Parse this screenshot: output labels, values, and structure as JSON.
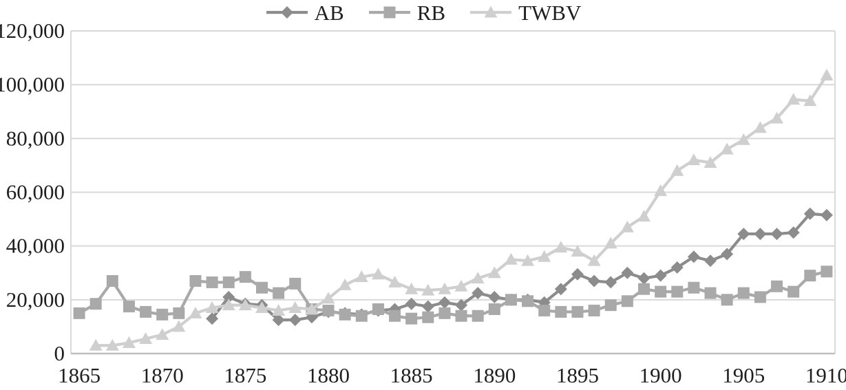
{
  "chart_data": {
    "type": "line",
    "title": "",
    "x": [
      1865,
      1866,
      1867,
      1868,
      1869,
      1870,
      1871,
      1872,
      1873,
      1874,
      1875,
      1876,
      1877,
      1878,
      1879,
      1880,
      1881,
      1882,
      1883,
      1884,
      1885,
      1886,
      1887,
      1888,
      1889,
      1890,
      1891,
      1892,
      1893,
      1894,
      1895,
      1896,
      1897,
      1898,
      1899,
      1900,
      1901,
      1902,
      1903,
      1904,
      1905,
      1906,
      1907,
      1908,
      1909,
      1910
    ],
    "series": [
      {
        "name": "AB",
        "marker": "diamond",
        "color": "#8c8c8c",
        "values": [
          null,
          null,
          null,
          null,
          null,
          null,
          null,
          null,
          13000,
          21000,
          18500,
          18000,
          12500,
          12500,
          13500,
          15500,
          15000,
          14500,
          16000,
          16500,
          18500,
          17500,
          19000,
          18000,
          22500,
          21000,
          20000,
          20000,
          19000,
          24000,
          29500,
          27000,
          26500,
          30000,
          28000,
          29000,
          32000,
          36000,
          34500,
          37000,
          44500,
          44500,
          44500,
          45000,
          52000,
          51500
        ]
      },
      {
        "name": "RB",
        "marker": "square",
        "color": "#a9a9a9",
        "values": [
          15000,
          18500,
          27000,
          17500,
          15500,
          14500,
          15000,
          27000,
          26500,
          26500,
          28500,
          24500,
          22500,
          26000,
          16500,
          16000,
          14500,
          14000,
          16500,
          14000,
          13000,
          13500,
          15000,
          14000,
          14000,
          16500,
          20000,
          19500,
          16000,
          15500,
          15500,
          16000,
          18000,
          19500,
          24000,
          23000,
          23000,
          24500,
          22500,
          20000,
          22500,
          21000,
          25000,
          23000,
          29000,
          30500
        ]
      },
      {
        "name": "TWBV",
        "marker": "triangle",
        "color": "#cfcfcf",
        "values": [
          null,
          3000,
          3000,
          4000,
          5500,
          7000,
          10000,
          15000,
          17000,
          18000,
          18000,
          17000,
          16000,
          17000,
          16500,
          20500,
          25500,
          28500,
          29500,
          26500,
          24000,
          23500,
          24000,
          25000,
          28000,
          30000,
          35000,
          34500,
          36000,
          39500,
          38000,
          34500,
          41000,
          47000,
          51000,
          60500,
          68000,
          72000,
          71000,
          76000,
          79500,
          84000,
          87500,
          94500,
          94000,
          103500
        ]
      }
    ],
    "ylim": [
      0,
      120000
    ],
    "yticks": {
      "values": [
        0,
        20000,
        40000,
        60000,
        80000,
        100000,
        120000
      ],
      "labels": [
        "0",
        "20,000",
        "40,000",
        "60,000",
        "80,000",
        "100,000",
        "120,000"
      ]
    },
    "xticks": {
      "values": [
        1865,
        1870,
        1875,
        1880,
        1885,
        1890,
        1895,
        1900,
        1905,
        1910
      ],
      "labels": [
        "1865",
        "1870",
        "1875",
        "1880",
        "1885",
        "1890",
        "1895",
        "1900",
        "1905",
        "1910"
      ]
    },
    "legend": {
      "position": "top",
      "entries": [
        "AB",
        "RB",
        "TWBV"
      ]
    },
    "grid": "horizontal",
    "xlabel": "",
    "ylabel": ""
  },
  "styles": {
    "background": "#ffffff",
    "text_color": "#1f1f1f",
    "gridline_color": "#d9d9d9",
    "border_color": "#d9d9d9",
    "axis_color": "#bfbfbf"
  }
}
